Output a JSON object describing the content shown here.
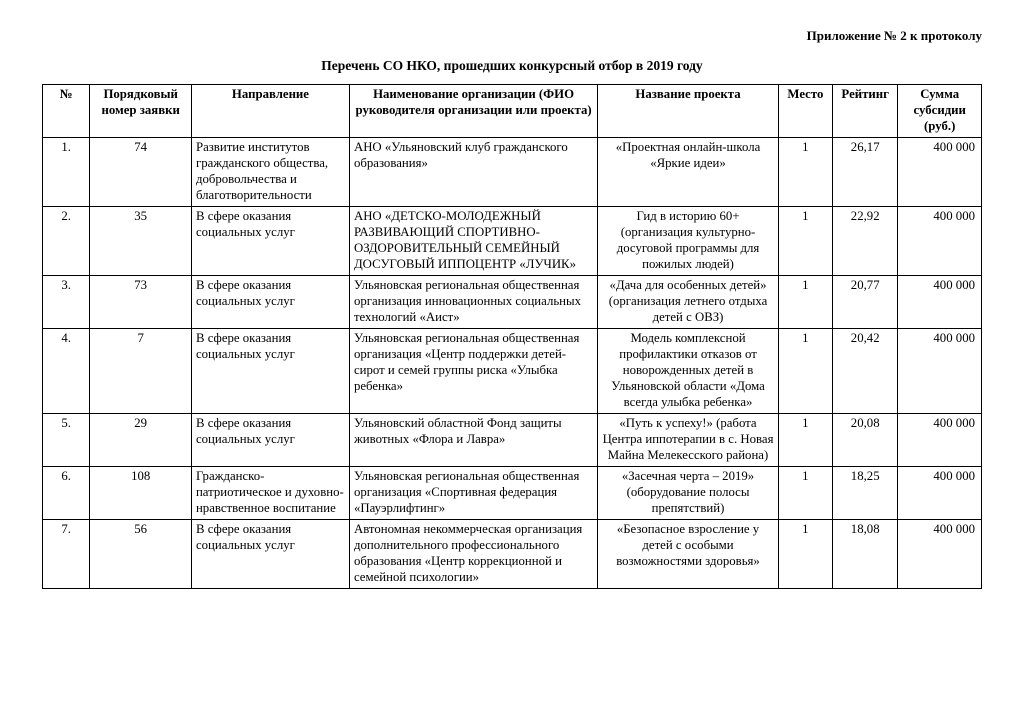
{
  "appendix": "Приложение   № 2 к протоколу",
  "title": "Перечень СО НКО, прошедших конкурсный отбор  в 2019 году",
  "columns": {
    "num": "№",
    "app": "Порядковый номер заявки",
    "dir": "Направление",
    "org": "Наименование организации (ФИО руководителя организации или проекта)",
    "proj": "Название проекта",
    "place": "Место",
    "rate": "Рейтинг",
    "sum": "Сумма субсидии (руб.)"
  },
  "rows": [
    {
      "num": "1.",
      "app": "74",
      "dir": "Развитие институтов гражданского общества, добровольчества и благотворительности",
      "org": "АНО «Ульяновский клуб гражданского образования»",
      "proj": "«Проектная онлайн-школа «Яркие идеи»",
      "place": "1",
      "rate": "26,17",
      "sum": "400 000"
    },
    {
      "num": "2.",
      "app": "35",
      "dir": "В сфере оказания социальных услуг",
      "org": "АНО «ДЕТСКО-МОЛОДЕЖНЫЙ РАЗВИВАЮЩИЙ СПОРТИВНО-ОЗДОРОВИТЕЛЬНЫЙ СЕМЕЙНЫЙ ДОСУГОВЫЙ  ИППОЦЕНТР «ЛУЧИК»",
      "proj": "Гид в историю 60+ (организация культурно-досуговой программы для пожилых людей)",
      "place": "1",
      "rate": "22,92",
      "sum": "400 000"
    },
    {
      "num": "3.",
      "app": "73",
      "dir": "В сфере оказания социальных услуг",
      "org": "Ульяновская региональная общественная организация инновационных социальных технологий «Аист»",
      "proj": "«Дача для особенных детей» (организация летнего отдыха детей с ОВЗ)",
      "place": "1",
      "rate": "20,77",
      "sum": "400 000"
    },
    {
      "num": "4.",
      "app": "7",
      "dir": "В сфере оказания социальных услуг",
      "org": "Ульяновская региональная общественная организация  «Центр поддержки детей-сирот и семей группы риска «Улыбка ребенка»",
      "proj": "Модель комплексной профилактики отказов от новорожденных детей в Ульяновской области «Дома всегда улыбка ребенка»",
      "place": "1",
      "rate": "20,42",
      "sum": "400 000"
    },
    {
      "num": "5.",
      "app": "29",
      "dir": "В сфере оказания социальных услуг",
      "org": "Ульяновский областной Фонд защиты животных «Флора и Лавра»",
      "proj": "«Путь к успеху!» (работа Центра иппотерапии в с. Новая Майна Мелекесского района)",
      "place": "1",
      "rate": "20,08",
      "sum": "400 000"
    },
    {
      "num": "6.",
      "app": "108",
      "dir": "Гражданско-патриотическое и духовно-нравственное воспитание",
      "org": "Ульяновская региональная общественная организация «Спортивная федерация «Пауэрлифтинг»",
      "proj": "«Засечная черта – 2019» (оборудование полосы препятствий)",
      "place": "1",
      "rate": "18,25",
      "sum": "400 000"
    },
    {
      "num": "7.",
      "app": "56",
      "dir": "В сфере оказания социальных услуг",
      "org": "Автономная некоммерческая организация дополнительного профессионального образования «Центр коррекционной и семейной психологии»",
      "proj": "«Безопасное взросление у детей с особыми возможностями здоровья»",
      "place": "1",
      "rate": "18,08",
      "sum": "400 000"
    }
  ]
}
